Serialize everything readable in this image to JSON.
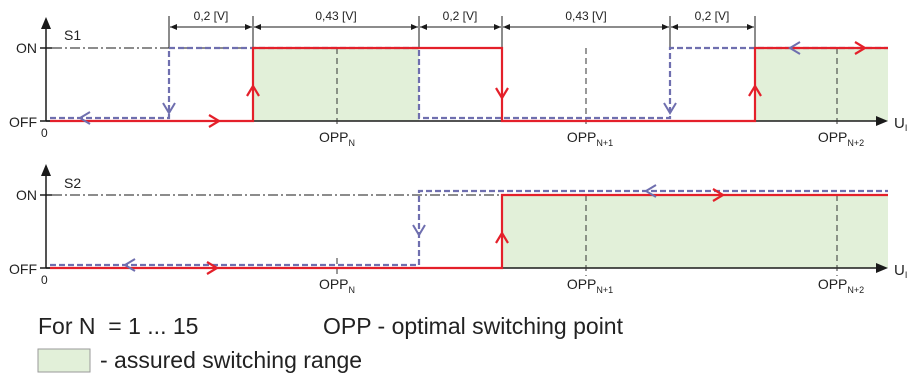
{
  "colors": {
    "switch_line": "#e4202a",
    "hysteresis_line": "#6f6faf",
    "range_fill": "#e2f0d9",
    "axis": "#1a1a1a"
  },
  "panel1": {
    "signal": "S1",
    "on_label": "ON",
    "off_label": "OFF",
    "zero_label": "0",
    "axis_label": "U",
    "axis_label_sub": "I",
    "dims": [
      "0,2 [V]",
      "0,43 [V]",
      "0,2 [V]",
      "0,43 [V]",
      "0,2 [V]"
    ],
    "opp": [
      {
        "main": "OPP",
        "sub": "N"
      },
      {
        "main": "OPP",
        "sub": "N+1"
      },
      {
        "main": "OPP",
        "sub": "N+2"
      }
    ]
  },
  "panel2": {
    "signal": "S2",
    "on_label": "ON",
    "off_label": "OFF",
    "zero_label": "0",
    "axis_label": "U",
    "axis_label_sub": "I",
    "opp": [
      {
        "main": "OPP",
        "sub": "N"
      },
      {
        "main": "OPP",
        "sub": "N+1"
      },
      {
        "main": "OPP",
        "sub": "N+2"
      }
    ]
  },
  "legend": {
    "for_n": "For N  = 1 ... 15",
    "opp_desc": "OPP - optimal switching point",
    "range_desc": "- assured switching range"
  }
}
